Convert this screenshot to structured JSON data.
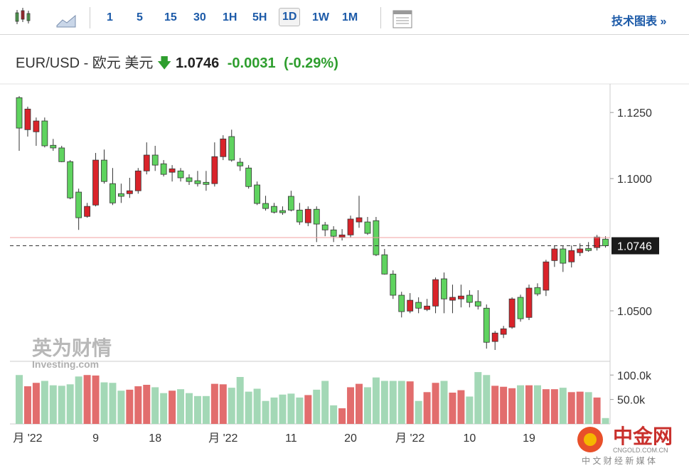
{
  "toolbar": {
    "intervals": [
      "1",
      "5",
      "15",
      "30",
      "1H",
      "5H",
      "1D",
      "1W",
      "1M"
    ],
    "active": 6,
    "link": "技术图表 »"
  },
  "header": {
    "symbol": "EUR/USD - 欧元 美元",
    "price": "1.0746",
    "change": "-0.0031",
    "change_pct": "(-0.29%)"
  },
  "watermark": {
    "brand": "英为财情",
    "site": "Investing.com",
    "logo": "中金网",
    "logo_site": "CNGOLD.COM.CN",
    "logo_slogan": "中 文 财 经 新 媒 体"
  },
  "chart_data": {
    "type": "candlestick",
    "categories": [
      null,
      "月 '22",
      null,
      null,
      null,
      null,
      null,
      null,
      null,
      "9",
      null,
      null,
      null,
      null,
      null,
      null,
      "18",
      null,
      null,
      null,
      null,
      null,
      null,
      null,
      "月 '22",
      null,
      null,
      null,
      null,
      null,
      null,
      null,
      "11",
      null,
      null,
      null,
      null,
      null,
      null,
      "20",
      null,
      null,
      null,
      null,
      null,
      null,
      "月 '22",
      null,
      null,
      null,
      null,
      null,
      null,
      "10",
      null,
      null,
      null,
      null,
      null,
      null,
      "19",
      null,
      null,
      null,
      null,
      null,
      null,
      null,
      null,
      null
    ],
    "open": [
      1.1306,
      1.1185,
      1.1177,
      1.1218,
      1.1126,
      1.1116,
      1.1064,
      1.0949,
      1.0857,
      1.09,
      1.107,
      1.0981,
      1.0943,
      1.0943,
      1.0954,
      1.1029,
      1.1089,
      1.1056,
      1.1024,
      1.1029,
      1.1003,
      1.0992,
      1.0986,
      1.0981,
      1.1083,
      1.1159,
      1.1062,
      1.104,
      1.0976,
      1.0906,
      1.0895,
      1.0879,
      1.0933,
      1.0881,
      1.0833,
      1.0884,
      1.0825,
      1.0806,
      1.0779,
      1.0787,
      1.0836,
      1.0836,
      1.0841,
      1.0712,
      1.0639,
      1.0559,
      1.0499,
      1.0532,
      1.0505,
      1.0518,
      1.0621,
      1.054,
      1.0545,
      1.0559,
      1.0535,
      1.051,
      1.0384,
      1.0411,
      1.0438,
      1.0551,
      1.0475,
      1.0588,
      1.0578,
      1.069,
      1.0734,
      1.0685,
      1.072,
      1.0736,
      1.0739,
      1.0771
    ],
    "high": [
      1.1312,
      1.1272,
      1.1231,
      1.1231,
      1.115,
      1.1124,
      1.107,
      1.0962,
      1.0908,
      1.1097,
      1.111,
      1.104,
      1.0981,
      1.1003,
      1.104,
      1.1137,
      1.1124,
      1.107,
      1.1051,
      1.104,
      1.1016,
      1.1029,
      1.1029,
      1.1137,
      1.1164,
      1.1185,
      1.1078,
      1.1051,
      1.0989,
      1.0935,
      1.0908,
      1.0895,
      1.0954,
      1.0908,
      1.0895,
      1.0895,
      1.0836,
      1.082,
      1.0809,
      1.086,
      1.0935,
      1.0855,
      1.0855,
      1.0734,
      1.0653,
      1.0572,
      1.0567,
      1.0551,
      1.0545,
      1.0626,
      1.0645,
      1.0599,
      1.0599,
      1.0578,
      1.0578,
      1.0524,
      1.0424,
      1.0443,
      1.0551,
      1.0561,
      1.0599,
      1.0604,
      1.0693,
      1.0747,
      1.0747,
      1.0747,
      1.0755,
      1.076,
      1.0787,
      1.0782
    ],
    "low": [
      1.1105,
      1.1159,
      1.1124,
      1.1118,
      1.1105,
      1.1062,
      1.0922,
      1.0806,
      1.0852,
      1.0895,
      1.0981,
      1.09,
      1.0908,
      1.0927,
      1.0943,
      1.1016,
      1.1029,
      1.1008,
      1.0989,
      1.0989,
      1.0976,
      1.097,
      1.0954,
      1.097,
      1.107,
      1.1064,
      1.1029,
      1.0962,
      1.09,
      1.0879,
      1.0868,
      1.0863,
      1.0876,
      1.0825,
      1.082,
      1.076,
      1.0782,
      1.076,
      1.0766,
      1.0777,
      1.0814,
      1.0787,
      1.0707,
      1.0637,
      1.0545,
      1.0475,
      1.0491,
      1.0491,
      1.0499,
      1.0491,
      1.0491,
      1.0491,
      1.0513,
      1.0513,
      1.0505,
      1.0357,
      1.0352,
      1.0397,
      1.0432,
      1.0459,
      1.0465,
      1.0556,
      1.0556,
      1.0666,
      1.0647,
      1.0664,
      1.0707,
      1.0723,
      1.0728,
      1.0739
    ],
    "close": [
      1.1191,
      1.1263,
      1.1218,
      1.1124,
      1.1116,
      1.1064,
      1.0927,
      1.0852,
      1.0895,
      1.107,
      1.0989,
      1.0908,
      1.0933,
      1.0954,
      1.1029,
      1.1089,
      1.1051,
      1.1016,
      1.1037,
      1.1003,
      1.0989,
      1.0981,
      1.0978,
      1.1083,
      1.115,
      1.107,
      1.1048,
      1.097,
      1.0906,
      1.0887,
      1.0873,
      1.0871,
      1.0881,
      1.0836,
      1.0884,
      1.0828,
      1.0806,
      1.0782,
      1.0787,
      1.0847,
      1.0852,
      1.0793,
      1.0712,
      1.0639,
      1.0559,
      1.0497,
      1.054,
      1.051,
      1.0518,
      1.0618,
      1.0545,
      1.0551,
      1.0556,
      1.0532,
      1.0518,
      1.0381,
      1.0416,
      1.0432,
      1.0545,
      1.047,
      1.0586,
      1.0564,
      1.0685,
      1.0734,
      1.068,
      1.0728,
      1.0734,
      1.0728,
      1.0779,
      1.0746
    ],
    "volume": [
      100000,
      77000,
      84000,
      88000,
      79000,
      78000,
      81000,
      97000,
      100000,
      99000,
      85000,
      84000,
      68000,
      70000,
      77000,
      80000,
      75000,
      63000,
      68000,
      71000,
      63000,
      57000,
      57000,
      82000,
      81000,
      74000,
      96000,
      66000,
      72000,
      47000,
      54000,
      60000,
      62000,
      54000,
      59000,
      70000,
      88000,
      38000,
      32000,
      75000,
      82000,
      75000,
      95000,
      88000,
      88000,
      88000,
      87000,
      47000,
      65000,
      84000,
      88000,
      64000,
      69000,
      56000,
      106000,
      100000,
      78000,
      76000,
      73000,
      79000,
      79000,
      79000,
      71000,
      71000,
      74000,
      65000,
      66000,
      65000,
      54000,
      12000
    ],
    "up_color": "#d9232a",
    "down_color": "#5fd35f",
    "volume_up_color": "#e26d6d",
    "volume_down_color": "#a3d8b6",
    "ylim": [
      1.0309,
      1.1358
    ],
    "yticks": [
      {
        "value": 1.125,
        "label": "1.1250"
      },
      {
        "value": 1.1,
        "label": "1.1000"
      },
      {
        "value": 1.05,
        "label": "1.0500"
      }
    ],
    "volume_ylim": [
      0,
      128000
    ],
    "volume_yticks": [
      {
        "value": 100000,
        "label": "100.0k"
      },
      {
        "value": 50000,
        "label": "50.0k"
      }
    ],
    "last_price": {
      "value": 1.0746,
      "label": "1.0746"
    },
    "prev_close": 1.0777
  }
}
